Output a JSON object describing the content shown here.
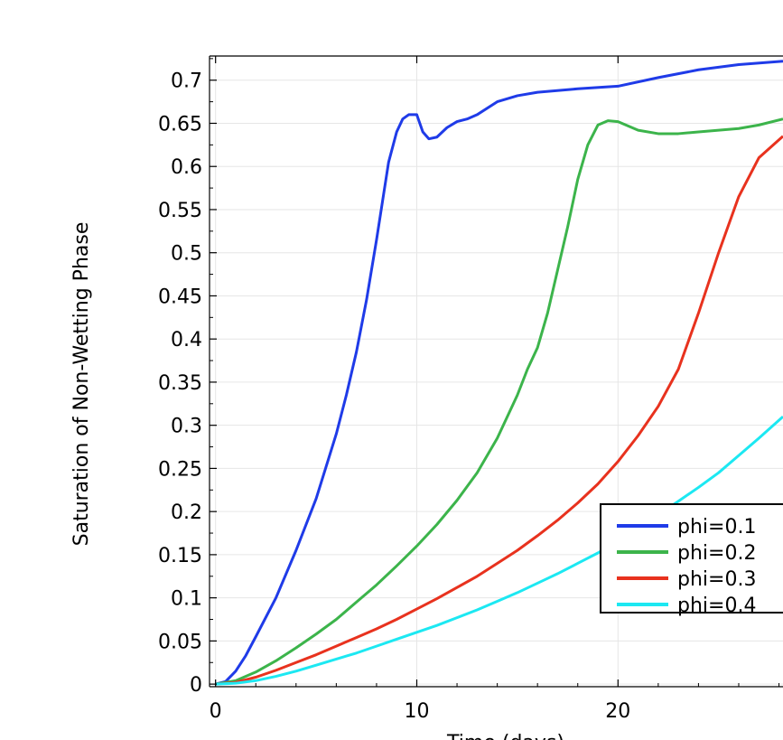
{
  "chart_data": {
    "type": "line",
    "xlabel": "Time (days)",
    "ylabel": "Saturation of Non-Wetting Phase",
    "xlim": [
      -0.3,
      28.2
    ],
    "ylim": [
      -0.003,
      0.728
    ],
    "xticks": [
      0,
      10,
      20
    ],
    "yticks": [
      0,
      0.05,
      0.1,
      0.15,
      0.2,
      0.25,
      0.3,
      0.35,
      0.4,
      0.45,
      0.5,
      0.55,
      0.6,
      0.65,
      0.7
    ],
    "ytick_labels": [
      "0",
      "0.05",
      "0.1",
      "0.15",
      "0.2",
      "0.25",
      "0.3",
      "0.35",
      "0.4",
      "0.45",
      "0.5",
      "0.55",
      "0.6",
      "0.65",
      "0.7"
    ],
    "xtick_labels": [
      "0",
      "10",
      "20"
    ],
    "grid": true,
    "legend_position": "bottom-right",
    "series": [
      {
        "name": "phi=0.1",
        "color": "#1f3be8",
        "x": [
          0,
          0.5,
          1,
          1.5,
          2,
          3,
          4,
          5,
          6,
          6.5,
          7,
          7.5,
          8,
          8.3,
          8.6,
          9,
          9.3,
          9.6,
          10,
          10.3,
          10.6,
          11,
          11.5,
          12,
          12.5,
          13,
          14,
          15,
          16,
          18,
          20,
          22,
          24,
          26,
          28.2
        ],
        "y": [
          0,
          0.003,
          0.015,
          0.033,
          0.055,
          0.1,
          0.155,
          0.215,
          0.29,
          0.335,
          0.385,
          0.445,
          0.515,
          0.56,
          0.605,
          0.64,
          0.655,
          0.66,
          0.66,
          0.64,
          0.632,
          0.634,
          0.645,
          0.652,
          0.655,
          0.66,
          0.675,
          0.682,
          0.686,
          0.69,
          0.693,
          0.703,
          0.712,
          0.718,
          0.722
        ]
      },
      {
        "name": "phi=0.2",
        "color": "#3cb44b",
        "x": [
          0,
          1,
          2,
          3,
          4,
          5,
          6,
          7,
          8,
          9,
          10,
          11,
          12,
          13,
          14,
          15,
          15.5,
          16,
          16.5,
          17,
          17.5,
          18,
          18.5,
          19,
          19.5,
          20,
          20.5,
          21,
          22,
          23,
          24,
          25,
          26,
          27,
          28.2
        ],
        "y": [
          0,
          0.004,
          0.014,
          0.027,
          0.042,
          0.058,
          0.075,
          0.095,
          0.115,
          0.137,
          0.16,
          0.185,
          0.213,
          0.245,
          0.285,
          0.335,
          0.365,
          0.39,
          0.43,
          0.48,
          0.53,
          0.585,
          0.625,
          0.648,
          0.653,
          0.652,
          0.647,
          0.642,
          0.638,
          0.638,
          0.64,
          0.642,
          0.644,
          0.648,
          0.655
        ]
      },
      {
        "name": "phi=0.3",
        "color": "#e8321e",
        "x": [
          0,
          1,
          2,
          3,
          4,
          5,
          6,
          7,
          8,
          9,
          10,
          11,
          12,
          13,
          14,
          15,
          16,
          17,
          18,
          19,
          20,
          21,
          22,
          23,
          24,
          25,
          26,
          27,
          28.2
        ],
        "y": [
          0,
          0.002,
          0.008,
          0.016,
          0.025,
          0.034,
          0.044,
          0.054,
          0.064,
          0.075,
          0.087,
          0.099,
          0.112,
          0.125,
          0.14,
          0.155,
          0.172,
          0.19,
          0.21,
          0.232,
          0.258,
          0.288,
          0.322,
          0.365,
          0.43,
          0.5,
          0.565,
          0.61,
          0.635
        ]
      },
      {
        "name": "phi=0.4",
        "color": "#1ce8f2",
        "x": [
          0,
          1,
          2,
          3,
          4,
          5,
          6,
          7,
          8,
          9,
          10,
          11,
          12,
          13,
          14,
          15,
          16,
          17,
          18,
          19,
          20,
          21,
          22,
          23,
          24,
          25,
          26,
          27,
          28.2
        ],
        "y": [
          0,
          0.001,
          0.004,
          0.009,
          0.015,
          0.022,
          0.029,
          0.036,
          0.044,
          0.052,
          0.06,
          0.068,
          0.077,
          0.086,
          0.096,
          0.106,
          0.117,
          0.128,
          0.14,
          0.152,
          0.166,
          0.18,
          0.196,
          0.212,
          0.228,
          0.245,
          0.265,
          0.285,
          0.31
        ]
      }
    ]
  }
}
